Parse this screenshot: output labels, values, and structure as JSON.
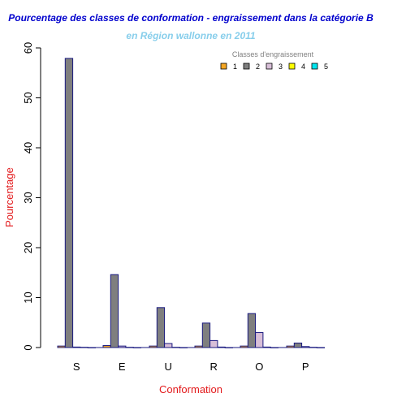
{
  "chart_data": {
    "type": "bar",
    "title": "Pourcentage des classes de conformation - engraissement dans la catégorie B",
    "subtitle": "en Région wallonne en 2011",
    "xlabel": "Conformation",
    "ylabel": "Pourcentage",
    "categories": [
      "S",
      "E",
      "U",
      "R",
      "O",
      "P"
    ],
    "ylim": [
      0,
      60
    ],
    "yticks": [
      0,
      10,
      20,
      30,
      40,
      50,
      60
    ],
    "grid": false,
    "legend_title": "Classes d'engraissement",
    "legend_position": "top-right",
    "series": [
      {
        "name": "1",
        "color": "#f5a623",
        "values": [
          0.3,
          0.4,
          0.3,
          0.3,
          0.3,
          0.3
        ]
      },
      {
        "name": "2",
        "color": "#7f7f7f",
        "values": [
          57.9,
          14.6,
          8.0,
          4.9,
          6.8,
          0.9
        ]
      },
      {
        "name": "3",
        "color": "#d8bfd8",
        "values": [
          0.1,
          0.3,
          0.8,
          1.4,
          3.0,
          0.2
        ]
      },
      {
        "name": "4",
        "color": "#ffff00",
        "values": [
          0.05,
          0.05,
          0.05,
          0.1,
          0.1,
          0.05
        ]
      },
      {
        "name": "5",
        "color": "#00e5ee",
        "values": [
          0.0,
          0.0,
          0.0,
          0.0,
          0.0,
          0.0
        ]
      }
    ],
    "colors": {
      "title": "#0000cd",
      "subtitle": "#87ceeb",
      "axis_label": "#e31a1c",
      "bar_border": "#1a1a80",
      "legend_title": "#808080"
    }
  }
}
